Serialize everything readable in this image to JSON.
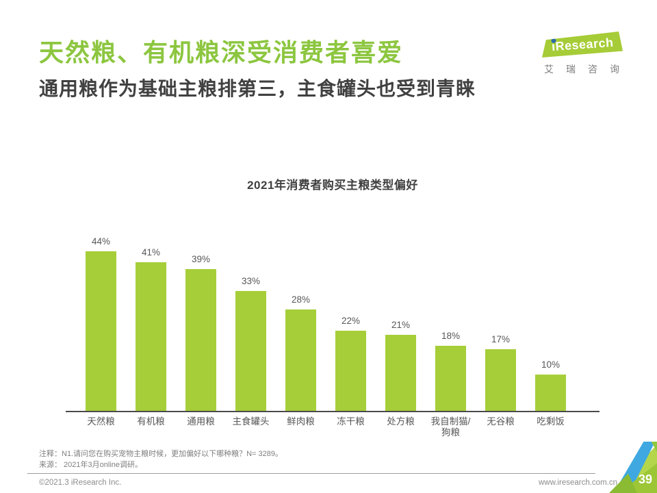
{
  "header": {
    "title": "天然粮、有机粮深受消费者喜爱",
    "subtitle": "通用粮作为基础主粮排第三，主食罐头也受到青睐"
  },
  "logo": {
    "brand": "iResearch",
    "brand_cn": "艾瑞咨询"
  },
  "chart_data": {
    "type": "bar",
    "title": "2021年消费者购买主粮类型偏好",
    "categories": [
      "天然粮",
      "有机粮",
      "通用粮",
      "主食罐头",
      "鲜肉粮",
      "冻干粮",
      "处方粮",
      "我自制猫/\n狗粮",
      "无谷粮",
      "吃剩饭"
    ],
    "values": [
      44,
      41,
      39,
      33,
      28,
      22,
      21,
      18,
      17,
      10
    ],
    "unit": "%",
    "ylim": [
      0,
      48
    ],
    "grid": false,
    "legend": "none",
    "bar_color": "#A6CE39",
    "value_label_color": "#595757"
  },
  "footnotes": {
    "note": "注释：N1.请问您在购买宠物主粮时候，更加偏好以下哪种粮？N= 3289。",
    "source": "来源： 2021年3月online调研。"
  },
  "footer": {
    "copyright": "©2021.3 iResearch Inc.",
    "website": "www.iresearch.com.cn",
    "page_number": "39"
  },
  "colors": {
    "title_green": "#8CC63F",
    "bar_green": "#A6CE39",
    "accent_blue": "#3FA8E0",
    "dark_text": "#404040",
    "label_gray": "#595757",
    "note_gray": "#7f7f7f"
  }
}
